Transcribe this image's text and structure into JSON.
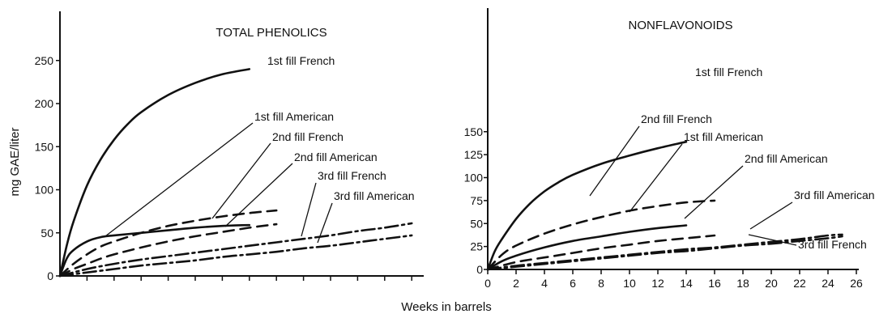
{
  "figure": {
    "ylabel": "mg GAE/liter",
    "xlabel": "Weeks in barrels"
  },
  "chart_data": [
    {
      "type": "line",
      "title": "TOTAL PHENOLICS",
      "xlabel": "Weeks in barrels",
      "ylabel": "mg GAE/liter",
      "ylim": [
        0,
        270
      ],
      "xlim": [
        0,
        26
      ],
      "yticks": [
        0,
        50,
        100,
        150,
        200,
        250
      ],
      "xticks": [],
      "grid": false,
      "series": [
        {
          "name": "1st fill French",
          "style": "solid",
          "x": [
            0,
            0.5,
            1,
            2,
            3,
            4,
            5,
            6,
            8,
            10,
            12,
            14
          ],
          "y": [
            0,
            35,
            63,
            105,
            135,
            158,
            176,
            190,
            210,
            224,
            234,
            240
          ]
        },
        {
          "name": "1st fill American",
          "style": "solid",
          "x": [
            0,
            0.5,
            1,
            2,
            3,
            4,
            6,
            8,
            10,
            12,
            14
          ],
          "y": [
            0,
            20,
            30,
            40,
            45,
            47,
            50,
            53,
            56,
            58,
            59
          ]
        },
        {
          "name": "2nd fill French",
          "style": "dashed",
          "x": [
            0,
            1,
            2,
            3,
            4,
            6,
            8,
            10,
            12,
            14,
            16
          ],
          "y": [
            0,
            14,
            25,
            34,
            40,
            50,
            58,
            64,
            69,
            73,
            76
          ]
        },
        {
          "name": "2nd fill American",
          "style": "dashed",
          "x": [
            0,
            1,
            2,
            3,
            4,
            6,
            8,
            10,
            12,
            14,
            16
          ],
          "y": [
            0,
            8,
            14,
            20,
            25,
            33,
            40,
            46,
            51,
            56,
            60
          ]
        },
        {
          "name": "3rd fill French",
          "style": "dashdot",
          "x": [
            0,
            2,
            4,
            6,
            8,
            10,
            12,
            14,
            16,
            18,
            20,
            22,
            24,
            26
          ],
          "y": [
            0,
            8,
            14,
            19,
            23,
            27,
            31,
            35,
            39,
            43,
            47,
            52,
            56,
            61
          ]
        },
        {
          "name": "3rd fill American",
          "style": "dashdot",
          "x": [
            0,
            2,
            4,
            6,
            8,
            10,
            12,
            14,
            16,
            18,
            20,
            22,
            24,
            26
          ],
          "y": [
            0,
            4,
            8,
            12,
            15,
            18,
            22,
            25,
            28,
            32,
            35,
            39,
            43,
            47
          ]
        }
      ],
      "annotations": [
        {
          "text": "1st fill French",
          "series": "1st fill French"
        },
        {
          "text": "1st fill American",
          "series": "1st fill American"
        },
        {
          "text": "2nd fill French",
          "series": "2nd fill French"
        },
        {
          "text": "2nd fill American",
          "series": "2nd fill American"
        },
        {
          "text": "3rd fill French",
          "series": "3rd fill French"
        },
        {
          "text": "3rd fill American",
          "series": "3rd fill American"
        }
      ]
    },
    {
      "type": "line",
      "title": "NONFLAVONOIDS",
      "xlabel": "Weeks in barrels",
      "ylabel": "mg GAE/liter",
      "ylim": [
        0,
        160
      ],
      "xlim": [
        0,
        26
      ],
      "yticks": [
        0,
        25,
        50,
        75,
        100,
        125,
        150
      ],
      "xticks": [
        0,
        2,
        4,
        6,
        8,
        10,
        12,
        14,
        16,
        18,
        20,
        22,
        24,
        26
      ],
      "grid": false,
      "series": [
        {
          "name": "1st fill French",
          "style": "solid",
          "x": [
            0,
            0.5,
            1,
            2,
            3,
            4,
            5,
            6,
            8,
            10,
            12,
            14
          ],
          "y": [
            0,
            20,
            33,
            55,
            72,
            85,
            95,
            103,
            115,
            124,
            132,
            139
          ]
        },
        {
          "name": "2nd fill French",
          "style": "dashed",
          "x": [
            0,
            1,
            2,
            4,
            6,
            8,
            10,
            12,
            14,
            16
          ],
          "y": [
            0,
            16,
            26,
            39,
            49,
            57,
            64,
            69,
            73,
            75
          ]
        },
        {
          "name": "1st fill American",
          "style": "solid",
          "x": [
            0,
            1,
            2,
            4,
            6,
            8,
            10,
            12,
            14
          ],
          "y": [
            0,
            9,
            15,
            24,
            31,
            36,
            41,
            45,
            48
          ]
        },
        {
          "name": "2nd fill American",
          "style": "dashed",
          "x": [
            0,
            2,
            4,
            6,
            8,
            10,
            12,
            14,
            16
          ],
          "y": [
            0,
            8,
            13,
            18,
            23,
            27,
            31,
            34,
            37
          ]
        },
        {
          "name": "3rd fill American",
          "style": "dashdot",
          "x": [
            0,
            2,
            4,
            6,
            8,
            10,
            12,
            14,
            16,
            18,
            20,
            22,
            24,
            25
          ],
          "y": [
            0,
            4,
            7,
            10,
            13,
            16,
            19,
            22,
            24,
            27,
            30,
            33,
            37,
            38
          ]
        },
        {
          "name": "3rd fill French",
          "style": "dashdot",
          "x": [
            0,
            2,
            4,
            6,
            8,
            10,
            12,
            14,
            16,
            18,
            20,
            22,
            24,
            25
          ],
          "y": [
            0,
            3,
            6,
            9,
            12,
            15,
            18,
            20,
            23,
            26,
            28,
            31,
            34,
            36
          ]
        }
      ],
      "annotations": [
        {
          "text": "1st fill French",
          "series": "1st fill French"
        },
        {
          "text": "2nd fill French",
          "series": "2nd fill French"
        },
        {
          "text": "1st fill American",
          "series": "1st fill American"
        },
        {
          "text": "2nd fill American",
          "series": "2nd fill American"
        },
        {
          "text": "3rd fill American",
          "series": "3rd fill American"
        },
        {
          "text": "3rd fill French",
          "series": "3rd fill French"
        }
      ]
    }
  ]
}
